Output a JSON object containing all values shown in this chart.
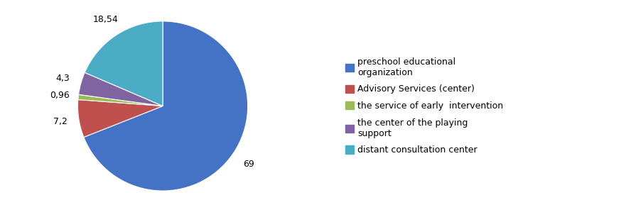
{
  "slices": [
    69,
    7.2,
    0.96,
    4.3,
    18.54
  ],
  "labels": [
    "69",
    "7,2",
    "0,96",
    "4,3",
    "18,54"
  ],
  "colors": [
    "#4472C4",
    "#C0504D",
    "#9BBB59",
    "#8064A2",
    "#4BACC6"
  ],
  "legend_labels": [
    "preschool educational\norganization",
    "Advisory Services (center)",
    "the service of early  intervention",
    "the center of the playing\nsupport",
    "distant consultation center"
  ],
  "startangle": 90,
  "counterclock": false,
  "figsize": [
    8.81,
    2.99
  ],
  "dpi": 100,
  "label_fontsize": 9,
  "legend_fontsize": 9
}
